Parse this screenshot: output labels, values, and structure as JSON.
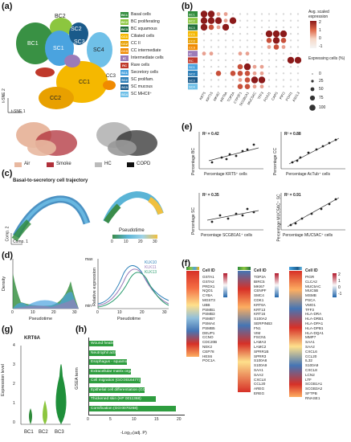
{
  "panels": {
    "a": "(a)",
    "b": "(b)",
    "c": "(c)",
    "d": "(d)",
    "e": "(e)",
    "f": "(f)",
    "g": "(g)",
    "h": "(h)"
  },
  "panel_a": {
    "cluster_labels": [
      "BC2",
      "BC1",
      "SC1",
      "SC2",
      "SC3",
      "SC4",
      "CC1",
      "CC2",
      "CC3"
    ],
    "axis_x": "t-SNE 1",
    "axis_y": "t-SNE 2",
    "legend": [
      {
        "code": "BC1",
        "label": "Basal cells",
        "color": "#2e8b3a"
      },
      {
        "code": "BC2",
        "label": "BC proliferating",
        "color": "#8cc63f"
      },
      {
        "code": "BC3",
        "label": "BC squamous",
        "color": "#1f6f3a"
      },
      {
        "code": "CC1",
        "label": "Ciliated cells",
        "color": "#f5b800"
      },
      {
        "code": "CC2",
        "label": "CC II",
        "color": "#e8a000"
      },
      {
        "code": "CC3",
        "label": "CC intermediate",
        "color": "#f08a00"
      },
      {
        "code": "IC",
        "label": "Intermediate cells",
        "color": "#9b7bb8"
      },
      {
        "code": "RC",
        "label": "Rare cells",
        "color": "#c0392b"
      },
      {
        "code": "SC1",
        "label": "Secretory cells",
        "color": "#4aa3df"
      },
      {
        "code": "SC2",
        "label": "SC prolifam.",
        "color": "#2d7fb8"
      },
      {
        "code": "SC3",
        "label": "SC mucous",
        "color": "#1a5a8a"
      },
      {
        "code": "SC4",
        "label": "SC MHCII⁺",
        "color": "#6fc0e8"
      }
    ],
    "condition_legend": [
      {
        "label": "Air",
        "color": "#e8b8a0"
      },
      {
        "label": "Smoke",
        "color": "#b0303a"
      },
      {
        "label": "HC",
        "color": "#bbbbbb"
      },
      {
        "label": "COPD",
        "color": "#111111"
      }
    ]
  },
  "panel_b": {
    "genes": [
      "KRT5",
      "KRT15",
      "MKI67",
      "KRT6A",
      "TOP2A",
      "CYP2F1",
      "SCGB1A1",
      "MUC5AC",
      "TFF3",
      "FOXJ1",
      "CAPS",
      "PIFO",
      "FOXI1",
      "ASCL3"
    ],
    "rows": [
      "BC1",
      "BC2",
      "BC3",
      "CC1",
      "CC2",
      "CC3",
      "IC",
      "RC",
      "SC1",
      "SC2",
      "SC3",
      "SC4"
    ],
    "color_title": "Avg. scaled expression",
    "color_ticks": [
      "2",
      "1",
      "0",
      "-1"
    ],
    "size_title": "Expressing cells (%)",
    "size_ticks": [
      "0",
      "25",
      "50",
      "75",
      "100"
    ]
  },
  "panel_c": {
    "title": "Basal-to-secretory cell trajectory",
    "pseudotime_label": "Pseudotime",
    "ticks": [
      "0",
      "10",
      "20",
      "30"
    ],
    "axis_x": "Comp. 1",
    "axis_y": "Comp. 2"
  },
  "panel_d": {
    "xlabel": "Pseudotime",
    "ylabel_left": "Density",
    "ylabel_right": "Relative expression",
    "ticks": [
      "0",
      "10",
      "20",
      "30"
    ],
    "y_max": "max",
    "y_min": "min",
    "series": [
      {
        "name": "KLK10",
        "color": "#2b7fb8"
      },
      {
        "name": "KLK11",
        "color": "#9b7bb8"
      },
      {
        "name": "KLK13",
        "color": "#2a9d6f"
      }
    ]
  },
  "panel_e": {
    "plots": [
      {
        "r2": "R² = 0.42",
        "xlabel": "Percentage KRT5⁺ cells",
        "ylabel": "Percentage BC",
        "xticks": [
          "20",
          "40",
          "60",
          "80"
        ]
      },
      {
        "r2": "R² = 0.88",
        "xlabel": "Percentage AcTub⁺ cells",
        "ylabel": "Percentage CC",
        "xticks": [
          "0",
          "20",
          "40",
          "60"
        ]
      },
      {
        "r2": "R² = 0.35",
        "xlabel": "Percentage SCGB1A1⁺ cells",
        "ylabel": "Percentage SC",
        "xticks": [
          "20",
          "40",
          "60",
          "80"
        ]
      },
      {
        "r2": "R² = 0.91",
        "xlabel": "Percentage MUC5AC⁺ cells",
        "ylabel": "Percentage MUC5AC⁺ SC",
        "xticks": [
          "0",
          "20",
          "40",
          "60"
        ]
      }
    ]
  },
  "panel_f": {
    "cell_id": "Cell ID",
    "list1": [
      "GSTA1",
      "GSTA2",
      "PRDX1",
      "NQO1",
      "CYBA",
      "MGST3",
      "UBB",
      "PSMB1",
      "PSMB3",
      "PSMB7",
      "PSMA4",
      "PSMB5",
      "DEUP1",
      "CCNO",
      "CDC20B",
      "NEK2",
      "CEP78",
      "HES6",
      "POC1A"
    ],
    "list2": [
      "TOP2A",
      "BIRC5",
      "MKI67",
      "CENPF",
      "SMC4",
      "CDK1",
      "KRT6A",
      "KRT13",
      "KRT16",
      "S100A2",
      "SERPINB3",
      "FN1",
      "VIM",
      "FSCN1",
      "LAMA3",
      "LAMC2",
      "SPRR1B",
      "SPRR3",
      "S100A8",
      "S100A9",
      "SAA1",
      "SAA2",
      "CXCL8",
      "CCL20",
      "AREG",
      "EREG"
    ],
    "list3": [
      "PIGR",
      "CLCA2",
      "MUC5AC",
      "MUC5B",
      "MSMB",
      "PSCA",
      "VMO1",
      "TFF3",
      "HLA-DRA",
      "HLA-DRB1",
      "HLA-DPA1",
      "HLA-DPB1",
      "HLA-DQA1",
      "MMP7",
      "SAA1",
      "SAA2",
      "CXCL6",
      "CCL20",
      "IL32",
      "S100A9",
      "CXCL8",
      "LCN2",
      "LTF",
      "SCGB1A1",
      "SCGB3A2",
      "SFTPB",
      "RNASE1"
    ],
    "scale_ticks": [
      "2",
      "1",
      "0",
      "-1"
    ]
  },
  "panel_g": {
    "title": "KRT6A",
    "ylabel": "Expression level",
    "categories": [
      "BC1",
      "BC2",
      "BC3"
    ],
    "yticks": [
      "0",
      "1",
      "2",
      "3",
      "4"
    ]
  },
  "panel_h": {
    "ylabel": "GSEA term",
    "xlabel": "-Log₁₀(adj. P)",
    "xticks": [
      "0",
      "5",
      "10",
      "15",
      "20"
    ],
    "terms": [
      {
        "label": "Wound healing (GO:0042060)",
        "value": 5.0
      },
      {
        "label": "Neutrophil activation (GO:0042119)",
        "value": 5.5
      },
      {
        "label": "Esophagus - squamous epithelial cells (HPA 0190223)",
        "value": 8.0
      },
      {
        "label": "Extracellular matrix organization (GO:0030198)",
        "value": 9.0
      },
      {
        "label": "Cell migration (GO:0016477)",
        "value": 11.0
      },
      {
        "label": "Epithelial cell differentiation (GO:0030855)",
        "value": 12.0
      },
      {
        "label": "Thickened skin (HP 0011368)",
        "value": 14.5
      },
      {
        "label": "Cornification (GO:0070268)",
        "value": 19.0
      }
    ]
  }
}
